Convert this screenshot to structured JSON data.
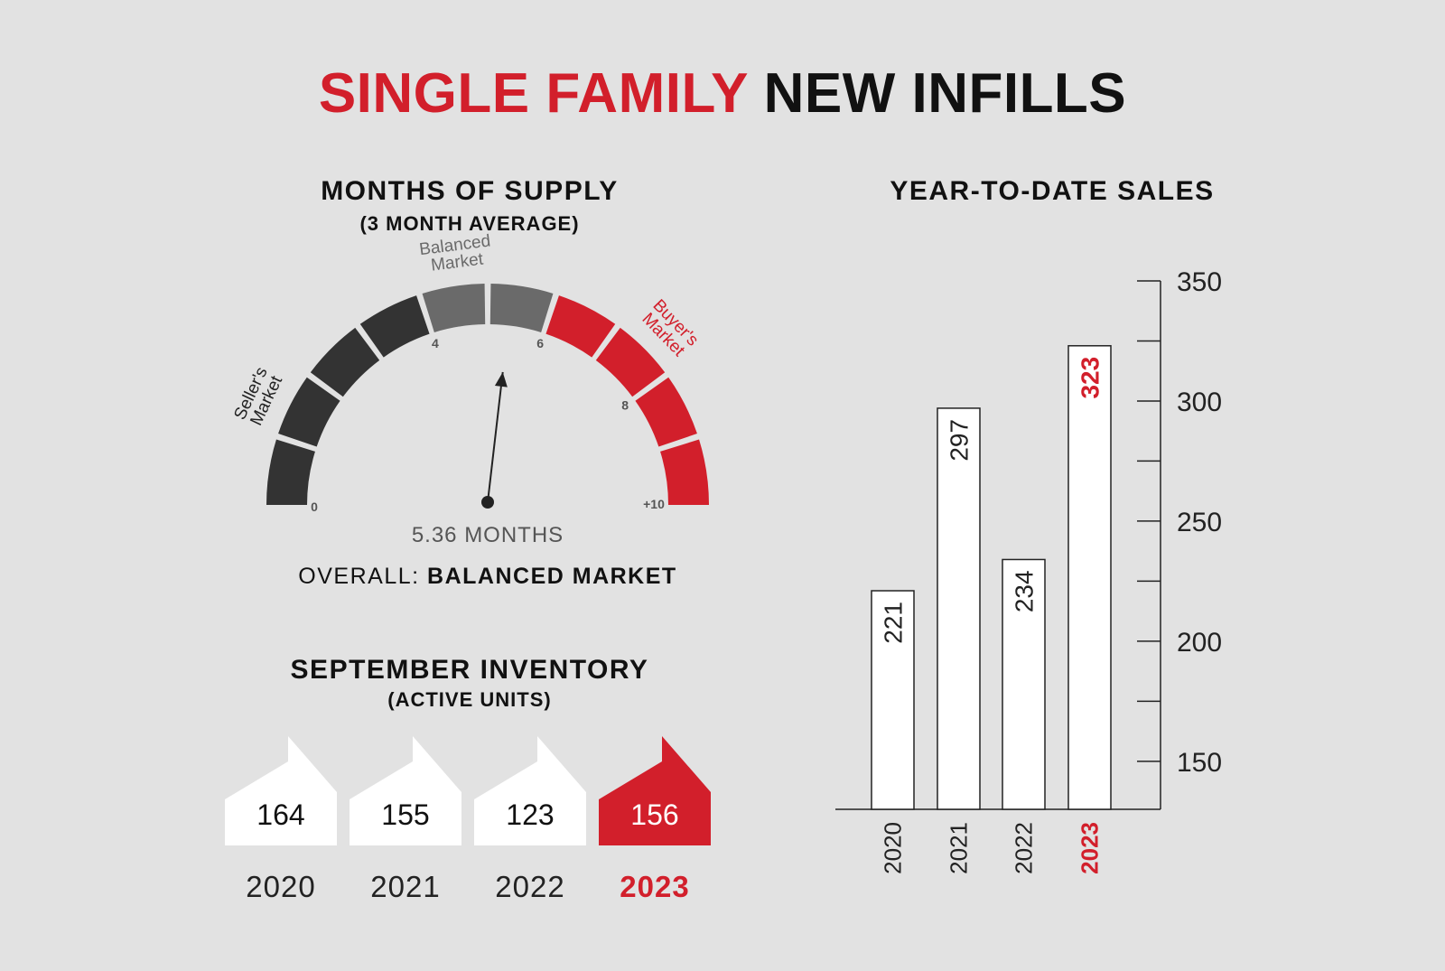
{
  "title": {
    "part1": "SINGLE FAMILY",
    "part2": "NEW INFILLS"
  },
  "colors": {
    "accent": "#d21f2b",
    "dark": "#333333",
    "mid": "#6a6a6a",
    "background": "#e2e2e2"
  },
  "gauge": {
    "title": "MONTHS OF SUPPLY",
    "subtitle": "(3 MONTH AVERAGE)",
    "value": 5.36,
    "readout": "5.36 MONTHS",
    "overall_label": "OVERALL:",
    "overall_value": "BALANCED MARKET",
    "range": [
      0,
      10
    ],
    "tick_labels": [
      {
        "value": 0,
        "text": "0"
      },
      {
        "value": 4,
        "text": "4"
      },
      {
        "value": 6,
        "text": "6"
      },
      {
        "value": 8,
        "text": "8"
      },
      {
        "value": 10,
        "text": "+10"
      }
    ],
    "zones": [
      {
        "name": "Seller's Market",
        "lines": [
          "Seller's",
          "Market"
        ],
        "from": 0,
        "to": 4,
        "color": "#333333"
      },
      {
        "name": "Balanced Market",
        "lines": [
          "Balanced",
          "Market"
        ],
        "from": 4,
        "to": 6,
        "color": "#6a6a6a"
      },
      {
        "name": "Buyer's Market",
        "lines": [
          "Buyer's",
          "Market"
        ],
        "from": 6,
        "to": 10,
        "color": "#d21f2b"
      }
    ]
  },
  "inventory": {
    "title": "SEPTEMBER INVENTORY",
    "subtitle": "(ACTIVE UNITS)",
    "items": [
      {
        "year": "2020",
        "value": "164",
        "highlight": false
      },
      {
        "year": "2021",
        "value": "155",
        "highlight": false
      },
      {
        "year": "2022",
        "value": "123",
        "highlight": false
      },
      {
        "year": "2023",
        "value": "156",
        "highlight": true
      }
    ]
  },
  "chart_data": {
    "type": "bar",
    "title": "YEAR-TO-DATE SALES",
    "categories": [
      "2020",
      "2021",
      "2022",
      "2023"
    ],
    "values": [
      221,
      297,
      234,
      323
    ],
    "highlight_category": "2023",
    "ylim": [
      130,
      350
    ],
    "y_ticks": [
      150,
      200,
      250,
      300,
      350
    ],
    "y_axis_side": "right",
    "grid": false
  }
}
